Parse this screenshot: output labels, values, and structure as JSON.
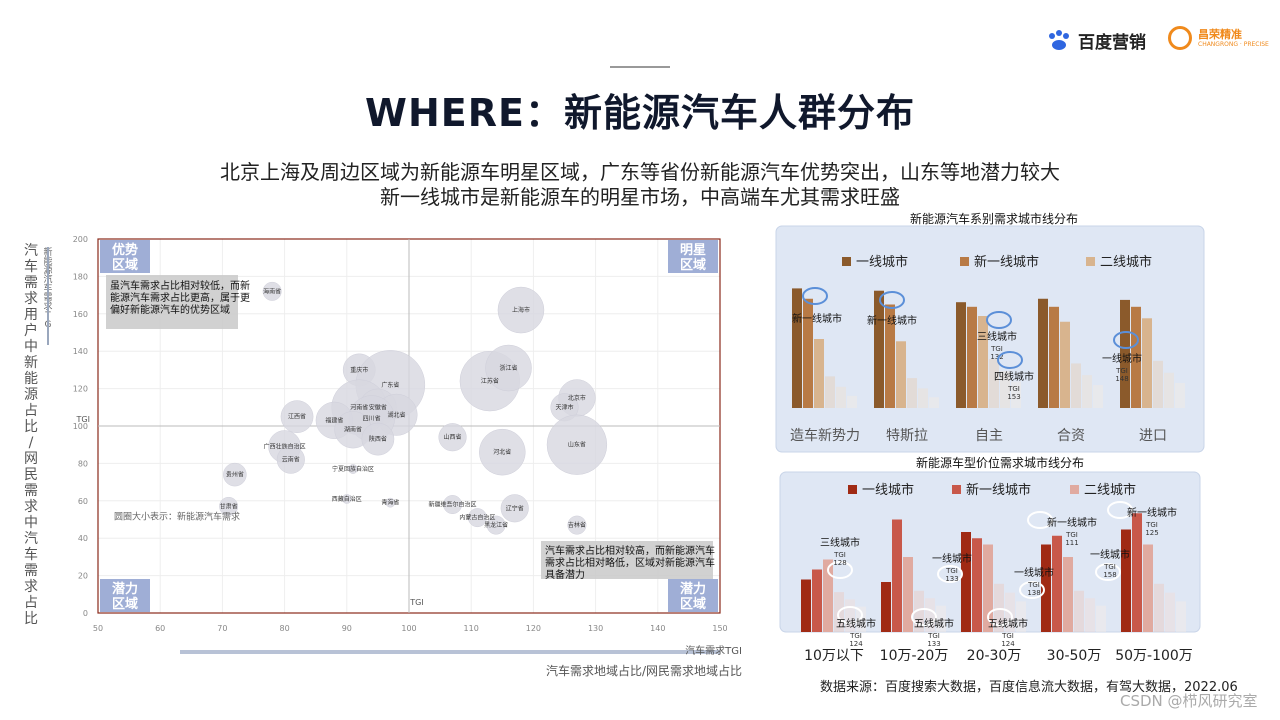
{
  "header": {
    "logo_baidu": "百度营销",
    "logo_changrong": "昌荣精准",
    "logo_changrong_sub": "CHANGRONG · PRECISE",
    "title": "WHERE：新能源汽车人群分布",
    "subtitle_line1": "北京上海及周边区域为新能源车明星区域，广东等省份新能源汽车优势突出，山东等地潜力较大",
    "subtitle_line2": "新一线城市是新能源车的明星市场，中高端车尤其需求旺盛"
  },
  "footer": {
    "source": "数据来源：百度搜索大数据，百度信息流大数据，有驾大数据，2022.06",
    "watermark": "CSDN @栉风研究室"
  },
  "colors": {
    "bubble": "#d7d7e0",
    "quadrant_box": "#8ea0cf",
    "panel_bg": "#dfe7f4",
    "brown_dark": "#8b5a2b",
    "brown_mid": "#b87a45",
    "brown_light": "#d8b48e",
    "red_dark": "#a02a14",
    "red_mid": "#c8584a",
    "red_light": "#e0aaa0",
    "highlight_circle": "#5b8fd8"
  },
  "chart_data": [
    {
      "type": "scatter",
      "bubble": true,
      "xlabel_short": "汽车需求TGI",
      "xlabel": "汽车需求地域占比/网民需求地域占比",
      "ylabel_short": "新能源汽车需求TGI",
      "ylabel": "汽车需求用户中新能源占比/网民需求中汽车需求占比",
      "xlim": [
        50,
        150
      ],
      "ylim": [
        0,
        200
      ],
      "xticks": [
        "50",
        "60",
        "70",
        "80",
        "90",
        "100",
        "110",
        "120",
        "130",
        "140",
        "150"
      ],
      "yticks": [
        "0",
        "20",
        "40",
        "60",
        "80",
        "100",
        "120",
        "140",
        "160",
        "180",
        "200"
      ],
      "ref_x_label": "TGI",
      "ref_y_label": "TGI",
      "ref_x": 100,
      "ref_y": 100,
      "quadrants": [
        "优势区域",
        "明星区域",
        "潜力区域",
        "潜力区域"
      ],
      "annotation_top_left": "虽汽车需求占比相对较低，而新能源汽车需求占比更高，属于更偏好新能源汽车的优势区域",
      "annotation_bottom_right": "汽车需求占比相对较高，而新能源汽车需求占比相对略低，区域对新能源汽车具备潜力",
      "size_note": "圆圈大小表示：新能源汽车需求",
      "points": [
        {
          "name": "海南省",
          "x": 78,
          "y": 172,
          "r": 2
        },
        {
          "name": "上海市",
          "x": 118,
          "y": 162,
          "r": 5
        },
        {
          "name": "重庆市",
          "x": 92,
          "y": 130,
          "r": 3.5
        },
        {
          "name": "广东省",
          "x": 97,
          "y": 122,
          "r": 7.5
        },
        {
          "name": "江苏省",
          "x": 113,
          "y": 124,
          "r": 6.5
        },
        {
          "name": "浙江省",
          "x": 116,
          "y": 131,
          "r": 5
        },
        {
          "name": "北京市",
          "x": 127,
          "y": 115,
          "r": 4
        },
        {
          "name": "天津市",
          "x": 125,
          "y": 110,
          "r": 3
        },
        {
          "name": "河南省",
          "x": 92,
          "y": 110,
          "r": 6
        },
        {
          "name": "安徽省",
          "x": 95,
          "y": 110,
          "r": 4
        },
        {
          "name": "湖北省",
          "x": 98,
          "y": 106,
          "r": 4.5
        },
        {
          "name": "四川省",
          "x": 94,
          "y": 104,
          "r": 5
        },
        {
          "name": "江西省",
          "x": 82,
          "y": 105,
          "r": 3.5
        },
        {
          "name": "福建省",
          "x": 88,
          "y": 103,
          "r": 4
        },
        {
          "name": "湖南省",
          "x": 91,
          "y": 98,
          "r": 4
        },
        {
          "name": "陕西省",
          "x": 95,
          "y": 93,
          "r": 3.5
        },
        {
          "name": "山西省",
          "x": 107,
          "y": 94,
          "r": 3
        },
        {
          "name": "河北省",
          "x": 115,
          "y": 86,
          "r": 5
        },
        {
          "name": "山东省",
          "x": 127,
          "y": 90,
          "r": 6.5
        },
        {
          "name": "广西壮族自治区",
          "x": 80,
          "y": 89,
          "r": 3.5
        },
        {
          "name": "云南省",
          "x": 81,
          "y": 82,
          "r": 3
        },
        {
          "name": "宁夏回族自治区",
          "x": 91,
          "y": 77,
          "r": 1
        },
        {
          "name": "贵州省",
          "x": 72,
          "y": 74,
          "r": 2.5
        },
        {
          "name": "甘肃省",
          "x": 71,
          "y": 57,
          "r": 2
        },
        {
          "name": "西藏自治区",
          "x": 90,
          "y": 61,
          "r": 1
        },
        {
          "name": "青海省",
          "x": 97,
          "y": 59,
          "r": 1
        },
        {
          "name": "新疆维吾尔自治区",
          "x": 107,
          "y": 58,
          "r": 2
        },
        {
          "name": "内蒙古自治区",
          "x": 111,
          "y": 51,
          "r": 2
        },
        {
          "name": "辽宁省",
          "x": 117,
          "y": 56,
          "r": 3
        },
        {
          "name": "黑龙江省",
          "x": 114,
          "y": 47,
          "r": 2
        },
        {
          "name": "吉林省",
          "x": 127,
          "y": 47,
          "r": 2
        }
      ]
    },
    {
      "type": "bar",
      "title": "新能源汽车系别需求城市线分布",
      "series": [
        {
          "name": "一线城市",
          "values": [
            174,
            172,
            162,
            165,
            164
          ]
        },
        {
          "name": "新一线城市",
          "values": [
            165,
            160,
            158,
            158,
            158
          ]
        },
        {
          "name": "二线城市",
          "values": [
            130,
            128,
            150,
            145,
            148
          ]
        }
      ],
      "categories": [
        "造车新势力",
        "特斯拉",
        "自主",
        "合资",
        "进口"
      ],
      "highlights": [
        {
          "label": "新一线城市"
        },
        {
          "label": "新一线城市"
        },
        {
          "label": "三线城市",
          "tgi": "TGI 132"
        },
        {
          "label": "四线城市",
          "tgi": "TGI 153"
        },
        {
          "label": "一线城市",
          "tgi": "TGI 148"
        }
      ]
    },
    {
      "type": "bar",
      "title": "新能源车型价位需求城市线分布",
      "series": [
        {
          "name": "一线城市",
          "values": [
            42,
            40,
            80,
            70,
            82
          ]
        },
        {
          "name": "新一线城市",
          "values": [
            50,
            90,
            75,
            77,
            95
          ]
        },
        {
          "name": "二线城市",
          "values": [
            58,
            60,
            70,
            60,
            70
          ]
        }
      ],
      "categories": [
        "10万以下",
        "10万-20万",
        "20-30万",
        "30-50万",
        "50万-100万"
      ],
      "highlights": [
        {
          "label": "三线城市",
          "tgi": "TGI 128"
        },
        {
          "label": "五线城市",
          "tgi": "TGI 124"
        },
        {
          "label": "五线城市",
          "tgi": "TGI 133"
        },
        {
          "label": "一线城市",
          "tgi": "TGI 133"
        },
        {
          "label": "五线城市",
          "tgi": "TGI 124"
        },
        {
          "label": "新一线城市",
          "tgi": "TGI 111"
        },
        {
          "label": "一线城市",
          "tgi": "TGI 138"
        },
        {
          "label": "新一线城市",
          "tgi": "TGI 125"
        },
        {
          "label": "一线城市",
          "tgi": "TGI 158"
        }
      ]
    }
  ]
}
